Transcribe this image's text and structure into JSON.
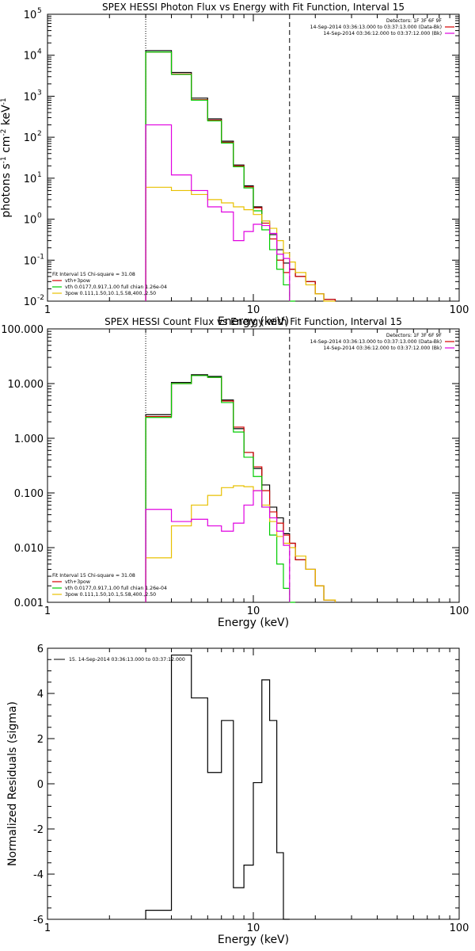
{
  "chart_data": [
    {
      "type": "line",
      "title": "SPEX HESSI Photon Flux vs Energy with Fit Function, Interval 15",
      "xlabel": "Energy (keV)",
      "ylabel_parts": [
        "photons s",
        "-1",
        " cm",
        "-2",
        " keV",
        "-1"
      ],
      "xscale": "log",
      "yscale": "log",
      "xlim": [
        1,
        100
      ],
      "ylim": [
        0.01,
        100000
      ],
      "xticks": [
        "1",
        "10",
        "100"
      ],
      "yticks": [
        {
          "v": 0.01,
          "base": "10",
          "exp": "-2"
        },
        {
          "v": 0.1,
          "base": "10",
          "exp": "-1"
        },
        {
          "v": 1,
          "base": "10",
          "exp": "0"
        },
        {
          "v": 10,
          "base": "10",
          "exp": "1"
        },
        {
          "v": 100,
          "base": "10",
          "exp": "2"
        },
        {
          "v": 1000,
          "base": "10",
          "exp": "3"
        },
        {
          "v": 10000,
          "base": "10",
          "exp": "4"
        },
        {
          "v": 100000,
          "base": "10",
          "exp": "5"
        }
      ],
      "vlines": [
        {
          "x": 3.0,
          "style": "dotted"
        },
        {
          "x": 15.0,
          "style": "dashed"
        }
      ],
      "info_lines": [
        "Detectors: 1F 3F 6F 9F",
        "14-Sep-2014 03:36:13.000 to 03:37:13.000 (Data-Bk)",
        "14-Sep-2014 03:36:12.000 to 03:37:12.000 (Bk)"
      ],
      "info_colors": [
        "#000000",
        "#d40000",
        "#e000e0"
      ],
      "legend_lines": [
        "Fit Interval 15   Chi-square = 31.08",
        "vth+3pow",
        "vth 0.0177,0.917,1.00  full chian 1.26e-04",
        "3pow 0.111,1.50,10.1,5.58,400.,2.50"
      ],
      "legend_colors": [
        null,
        "#d40000",
        "#00cc00",
        "#e8c000"
      ],
      "edges": [
        3,
        4,
        5,
        6,
        7,
        8,
        9,
        10,
        11,
        12,
        13,
        14,
        15,
        16,
        18,
        20,
        22,
        25
      ],
      "series": [
        {
          "name": "Data-Bk",
          "color": "#000000",
          "values": [
            13000,
            3800,
            900,
            280,
            80,
            21,
            6.5,
            2.0,
            0.9,
            0.42,
            0.18,
            0.085,
            0.06,
            0.04,
            0.03,
            0.015,
            0.011
          ]
        },
        {
          "name": "vth+3pow",
          "color": "#d40000",
          "values": [
            12000,
            3500,
            820,
            260,
            75,
            20,
            6.2,
            1.9,
            0.8,
            0.33,
            0.1,
            0.05,
            0.06,
            0.04,
            0.03,
            0.015,
            0.011
          ]
        },
        {
          "name": "vth",
          "color": "#00cc00",
          "values": [
            12000,
            3400,
            800,
            250,
            72,
            19,
            5.8,
            1.6,
            0.55,
            0.18,
            0.06,
            0.025,
            0.01
          ]
        },
        {
          "name": "3pow",
          "color": "#e8c000",
          "values": [
            6.0,
            5.0,
            4.0,
            3.0,
            2.5,
            2.0,
            1.7,
            1.3,
            0.9,
            0.6,
            0.3,
            0.15,
            0.09,
            0.05,
            0.025,
            0.015,
            0.01
          ]
        },
        {
          "name": "Bk",
          "color": "#e000e0",
          "values": [
            200,
            12,
            5.0,
            2.0,
            1.5,
            0.3,
            0.5,
            0.75,
            0.7,
            0.45,
            0.14,
            0.11
          ]
        }
      ]
    },
    {
      "type": "line",
      "title": "SPEX HESSI Count Flux vs Energy with Fit Function, Interval 15",
      "xlabel": "Energy (keV)",
      "xscale": "log",
      "yscale": "log",
      "xlim": [
        1,
        100
      ],
      "ylim": [
        0.001,
        100
      ],
      "xticks": [
        "1",
        "10",
        "100"
      ],
      "yticks": [
        {
          "v": 0.001,
          "label": "0.001"
        },
        {
          "v": 0.01,
          "label": "0.010"
        },
        {
          "v": 0.1,
          "label": "0.100"
        },
        {
          "v": 1,
          "label": "1.000"
        },
        {
          "v": 10,
          "label": "10.000"
        },
        {
          "v": 100,
          "label": "100.000"
        }
      ],
      "vlines": [
        {
          "x": 3.0,
          "style": "dotted"
        },
        {
          "x": 15.0,
          "style": "dashed"
        }
      ],
      "info_lines": [
        "Detectors: 1F 3F 6F 9F",
        "14-Sep-2014 03:36:13.000 to 03:37:13.000 (Data-Bk)",
        "14-Sep-2014 03:36:12.000 to 03:37:12.000 (Bk)"
      ],
      "info_colors": [
        "#000000",
        "#d40000",
        "#e000e0"
      ],
      "legend_lines": [
        "Fit Interval 15   Chi-square = 31.08",
        "vth+3pow",
        "vth 0.0177,0.917,1.00  full chian 1.26e-04",
        "3pow 0.111,1.50,10.1,5.58,400.,2.50"
      ],
      "legend_colors": [
        null,
        "#d40000",
        "#00cc00",
        "#e8c000"
      ],
      "edges": [
        3,
        4,
        5,
        6,
        7,
        8,
        9,
        10,
        11,
        12,
        13,
        14,
        15,
        16,
        18,
        20,
        22,
        25
      ],
      "series": [
        {
          "name": "Data-Bk",
          "color": "#000000",
          "values": [
            2.7,
            10.5,
            14.5,
            13.5,
            5.0,
            1.5,
            0.55,
            0.28,
            0.14,
            0.055,
            0.035,
            0.018,
            0.012,
            0.006,
            0.004,
            0.002,
            0.0011
          ]
        },
        {
          "name": "vth+3pow",
          "color": "#d40000",
          "values": [
            2.5,
            10.0,
            14.0,
            13.0,
            4.8,
            1.6,
            0.55,
            0.3,
            0.11,
            0.045,
            0.028,
            0.017,
            0.012,
            0.006,
            0.004,
            0.002,
            0.0011
          ]
        },
        {
          "name": "vth",
          "color": "#00cc00",
          "values": [
            2.4,
            10.0,
            14.0,
            13.0,
            4.5,
            1.3,
            0.45,
            0.2,
            0.055,
            0.017,
            0.005,
            0.0018,
            0.001
          ]
        },
        {
          "name": "3pow",
          "color": "#e8c000",
          "values": [
            0.0065,
            0.025,
            0.06,
            0.09,
            0.125,
            0.135,
            0.13,
            0.11,
            0.06,
            0.03,
            0.016,
            0.012,
            0.01,
            0.007,
            0.004,
            0.002,
            0.0011
          ]
        },
        {
          "name": "Bk",
          "color": "#e000e0",
          "values": [
            0.05,
            0.03,
            0.033,
            0.025,
            0.02,
            0.028,
            0.06,
            0.11,
            0.055,
            0.035,
            0.02,
            0.011
          ]
        }
      ]
    },
    {
      "type": "line",
      "title": "",
      "xlabel": "Energy (keV)",
      "ylabel": "Normalized Residuals (sigma)",
      "xscale": "log",
      "yscale": "linear",
      "xlim": [
        1,
        100
      ],
      "ylim": [
        -6,
        6
      ],
      "xticks": [
        "1",
        "10",
        "100"
      ],
      "yticks": [
        {
          "v": -6,
          "label": "-6"
        },
        {
          "v": -4,
          "label": "-4"
        },
        {
          "v": -2,
          "label": "-2"
        },
        {
          "v": 0,
          "label": "0"
        },
        {
          "v": 2,
          "label": "2"
        },
        {
          "v": 4,
          "label": "4"
        },
        {
          "v": 6,
          "label": "6"
        }
      ],
      "legend_text": "15. 14-Sep-2014 03:36:13.000 to 03:37:12.000",
      "edges": [
        3,
        4,
        5,
        6,
        7,
        8,
        9,
        10,
        11,
        12,
        13,
        14,
        15
      ],
      "series": [
        {
          "name": "15. 14-Sep-2014 03:36:13.000 to 03:37:12.000",
          "color": "#000000",
          "values": [
            -5.6,
            5.7,
            3.8,
            0.5,
            2.8,
            -4.6,
            -3.6,
            0.05,
            4.6,
            2.8,
            -3.05,
            -6.0
          ]
        }
      ]
    }
  ]
}
